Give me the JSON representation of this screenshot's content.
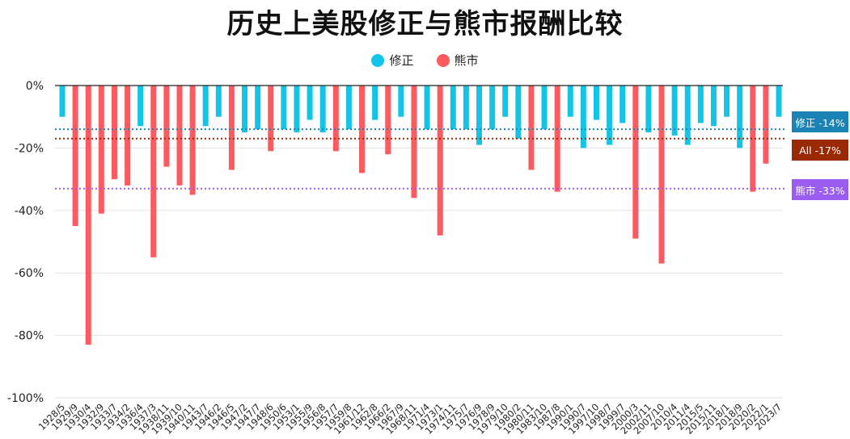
{
  "chart_data": {
    "type": "bar",
    "title": "历史上美股修正与熊市报酬比较",
    "ylim": [
      -100,
      0
    ],
    "yticks": [
      0,
      -20,
      -40,
      -60,
      -80,
      -100
    ],
    "ytick_labels": [
      "0%",
      "-20%",
      "-40%",
      "-60%",
      "-80%",
      "-100%"
    ],
    "grid": true,
    "legend_position": "top-center",
    "series_legend": [
      {
        "name": "修正",
        "color": "#12c4e6"
      },
      {
        "name": "熊市",
        "color": "#ff5a5f"
      }
    ],
    "categories": [
      "1928/5",
      "1929/9",
      "1930/4",
      "1932/9",
      "1933/7",
      "1934/2",
      "1936/4",
      "1937/3",
      "1938/11",
      "1939/10",
      "1940/11",
      "1943/7",
      "1946/2",
      "1946/5",
      "1947/2",
      "1947/7",
      "1948/6",
      "1950/6",
      "1953/1",
      "1955/9",
      "1956/8",
      "1957/7",
      "1959/8",
      "1961/12",
      "1962/8",
      "1966/2",
      "1967/9",
      "1968/11",
      "1971/4",
      "1973/1",
      "1974/11",
      "1975/7",
      "1976/9",
      "1978/9",
      "1979/10",
      "1980/2",
      "1980/11",
      "1983/10",
      "1987/8",
      "1990/1",
      "1990/7",
      "1997/10",
      "1998/7",
      "1999/7",
      "2000/3",
      "2002/11",
      "2007/10",
      "2010/4",
      "2011/4",
      "2015/5",
      "2015/11",
      "2018/1",
      "2018/9",
      "2020/2",
      "2022/1",
      "2023/7"
    ],
    "bars": [
      {
        "value": -10,
        "kind": "修正"
      },
      {
        "value": -45,
        "kind": "熊市"
      },
      {
        "value": -83,
        "kind": "熊市"
      },
      {
        "value": -41,
        "kind": "熊市"
      },
      {
        "value": -30,
        "kind": "熊市"
      },
      {
        "value": -32,
        "kind": "熊市"
      },
      {
        "value": -13,
        "kind": "修正"
      },
      {
        "value": -55,
        "kind": "熊市"
      },
      {
        "value": -26,
        "kind": "熊市"
      },
      {
        "value": -32,
        "kind": "熊市"
      },
      {
        "value": -35,
        "kind": "熊市"
      },
      {
        "value": -13,
        "kind": "修正"
      },
      {
        "value": -10,
        "kind": "修正"
      },
      {
        "value": -27,
        "kind": "熊市"
      },
      {
        "value": -15,
        "kind": "修正"
      },
      {
        "value": -14,
        "kind": "修正"
      },
      {
        "value": -21,
        "kind": "熊市"
      },
      {
        "value": -14,
        "kind": "修正"
      },
      {
        "value": -15,
        "kind": "修正"
      },
      {
        "value": -11,
        "kind": "修正"
      },
      {
        "value": -15,
        "kind": "修正"
      },
      {
        "value": -21,
        "kind": "熊市"
      },
      {
        "value": -14,
        "kind": "修正"
      },
      {
        "value": -28,
        "kind": "熊市"
      },
      {
        "value": -11,
        "kind": "修正"
      },
      {
        "value": -22,
        "kind": "熊市"
      },
      {
        "value": -10,
        "kind": "修正"
      },
      {
        "value": -36,
        "kind": "熊市"
      },
      {
        "value": -14,
        "kind": "修正"
      },
      {
        "value": -48,
        "kind": "熊市"
      },
      {
        "value": -14,
        "kind": "修正"
      },
      {
        "value": -14,
        "kind": "修正"
      },
      {
        "value": -19,
        "kind": "修正"
      },
      {
        "value": -14,
        "kind": "修正"
      },
      {
        "value": -10,
        "kind": "修正"
      },
      {
        "value": -17,
        "kind": "修正"
      },
      {
        "value": -27,
        "kind": "熊市"
      },
      {
        "value": -14,
        "kind": "修正"
      },
      {
        "value": -34,
        "kind": "熊市"
      },
      {
        "value": -10,
        "kind": "修正"
      },
      {
        "value": -20,
        "kind": "修正"
      },
      {
        "value": -11,
        "kind": "修正"
      },
      {
        "value": -19,
        "kind": "修正"
      },
      {
        "value": -12,
        "kind": "修正"
      },
      {
        "value": -49,
        "kind": "熊市"
      },
      {
        "value": -15,
        "kind": "修正"
      },
      {
        "value": -57,
        "kind": "熊市"
      },
      {
        "value": -16,
        "kind": "修正"
      },
      {
        "value": -19,
        "kind": "修正"
      },
      {
        "value": -12,
        "kind": "修正"
      },
      {
        "value": -13,
        "kind": "修正"
      },
      {
        "value": -10,
        "kind": "修正"
      },
      {
        "value": -20,
        "kind": "修正"
      },
      {
        "value": -34,
        "kind": "熊市"
      },
      {
        "value": -25,
        "kind": "熊市"
      },
      {
        "value": -10,
        "kind": "修正"
      }
    ],
    "reference_lines": [
      {
        "label": "修正 -14%",
        "value": -14,
        "color": "#1a82b5",
        "line_color": "#1a82b5"
      },
      {
        "label": "All -17%",
        "value": -17,
        "color": "#9a2a05",
        "line_color": "#9a2a05"
      },
      {
        "label": "熊市 -33%",
        "value": -33,
        "color": "#9b5cf0",
        "line_color": "#9b5cf0"
      }
    ]
  }
}
